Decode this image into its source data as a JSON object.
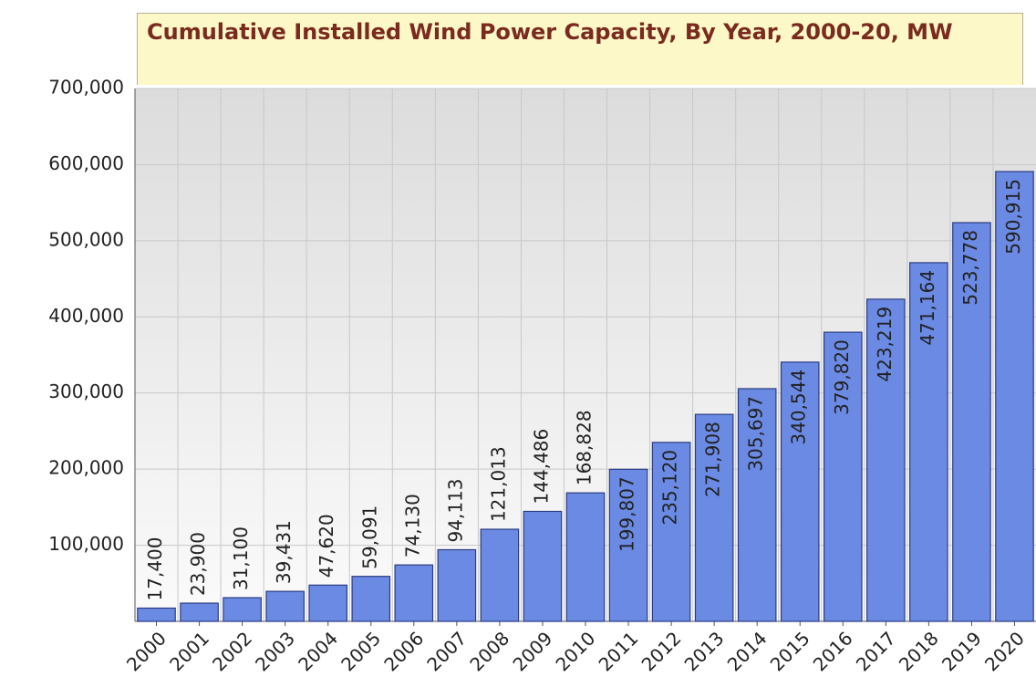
{
  "chart_data": {
    "type": "bar",
    "title": "Cumulative Installed Wind Power Capacity, By Year, 2000-20, MW",
    "categories": [
      "2000",
      "2001",
      "2002",
      "2003",
      "2004",
      "2005",
      "2006",
      "2007",
      "2008",
      "2009",
      "2010",
      "2011",
      "2012",
      "2013",
      "2014",
      "2015",
      "2016",
      "2017",
      "2018",
      "2019",
      "2020"
    ],
    "values": [
      17400,
      23900,
      31100,
      39431,
      47620,
      59091,
      74130,
      94113,
      121013,
      144486,
      168828,
      199807,
      235120,
      271908,
      305697,
      340544,
      379820,
      423219,
      471164,
      523778,
      590915
    ],
    "value_labels": [
      "17,400",
      "23,900",
      "31,100",
      "39,431",
      "47,620",
      "59,091",
      "74,130",
      "94,113",
      "121,013",
      "144,486",
      "168,828",
      "199,807",
      "235,120",
      "271,908",
      "305,697",
      "340,544",
      "379,820",
      "423,219",
      "471,164",
      "523,778",
      "590,915"
    ],
    "color": "#6b8ae3",
    "ylim": [
      0,
      700000
    ],
    "yticks": [
      {
        "value": 100000,
        "label": "100,000"
      },
      {
        "value": 200000,
        "label": "200,000"
      },
      {
        "value": 300000,
        "label": "300,000"
      },
      {
        "value": 400000,
        "label": "400,000"
      },
      {
        "value": 500000,
        "label": "500,000"
      },
      {
        "value": 600000,
        "label": "600,000"
      },
      {
        "value": 700000,
        "label": "700,000"
      }
    ],
    "grid": true
  }
}
